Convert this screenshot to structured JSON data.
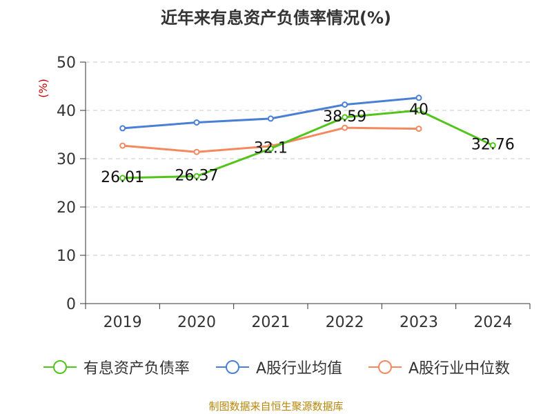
{
  "chart_data": {
    "type": "line",
    "title": "近年来有息资产负债率情况(%)",
    "ylabel": "(%)",
    "xlabel": "",
    "categories": [
      "2019",
      "2020",
      "2021",
      "2022",
      "2023",
      "2024"
    ],
    "ylim": [
      0,
      50
    ],
    "yticks": [
      0,
      10,
      20,
      30,
      40,
      50
    ],
    "grid": true,
    "legend_position": "bottom",
    "series": [
      {
        "name": "有息资产负债率",
        "color": "#52c41a",
        "values": [
          26.01,
          26.37,
          32.1,
          38.59,
          40,
          32.76
        ],
        "data_labels": [
          "26.01",
          "26.37",
          "32.1",
          "38.59",
          "40",
          "32.76"
        ]
      },
      {
        "name": "A股行业均值",
        "color": "#4a7fd6",
        "values": [
          36.3,
          37.5,
          38.3,
          41.2,
          42.6,
          null
        ]
      },
      {
        "name": "A股行业中位数",
        "color": "#f4895f",
        "values": [
          32.7,
          31.4,
          32.6,
          36.4,
          36.2,
          null
        ]
      }
    ]
  },
  "footer": {
    "source": "制图数据来自恒生聚源数据库"
  }
}
